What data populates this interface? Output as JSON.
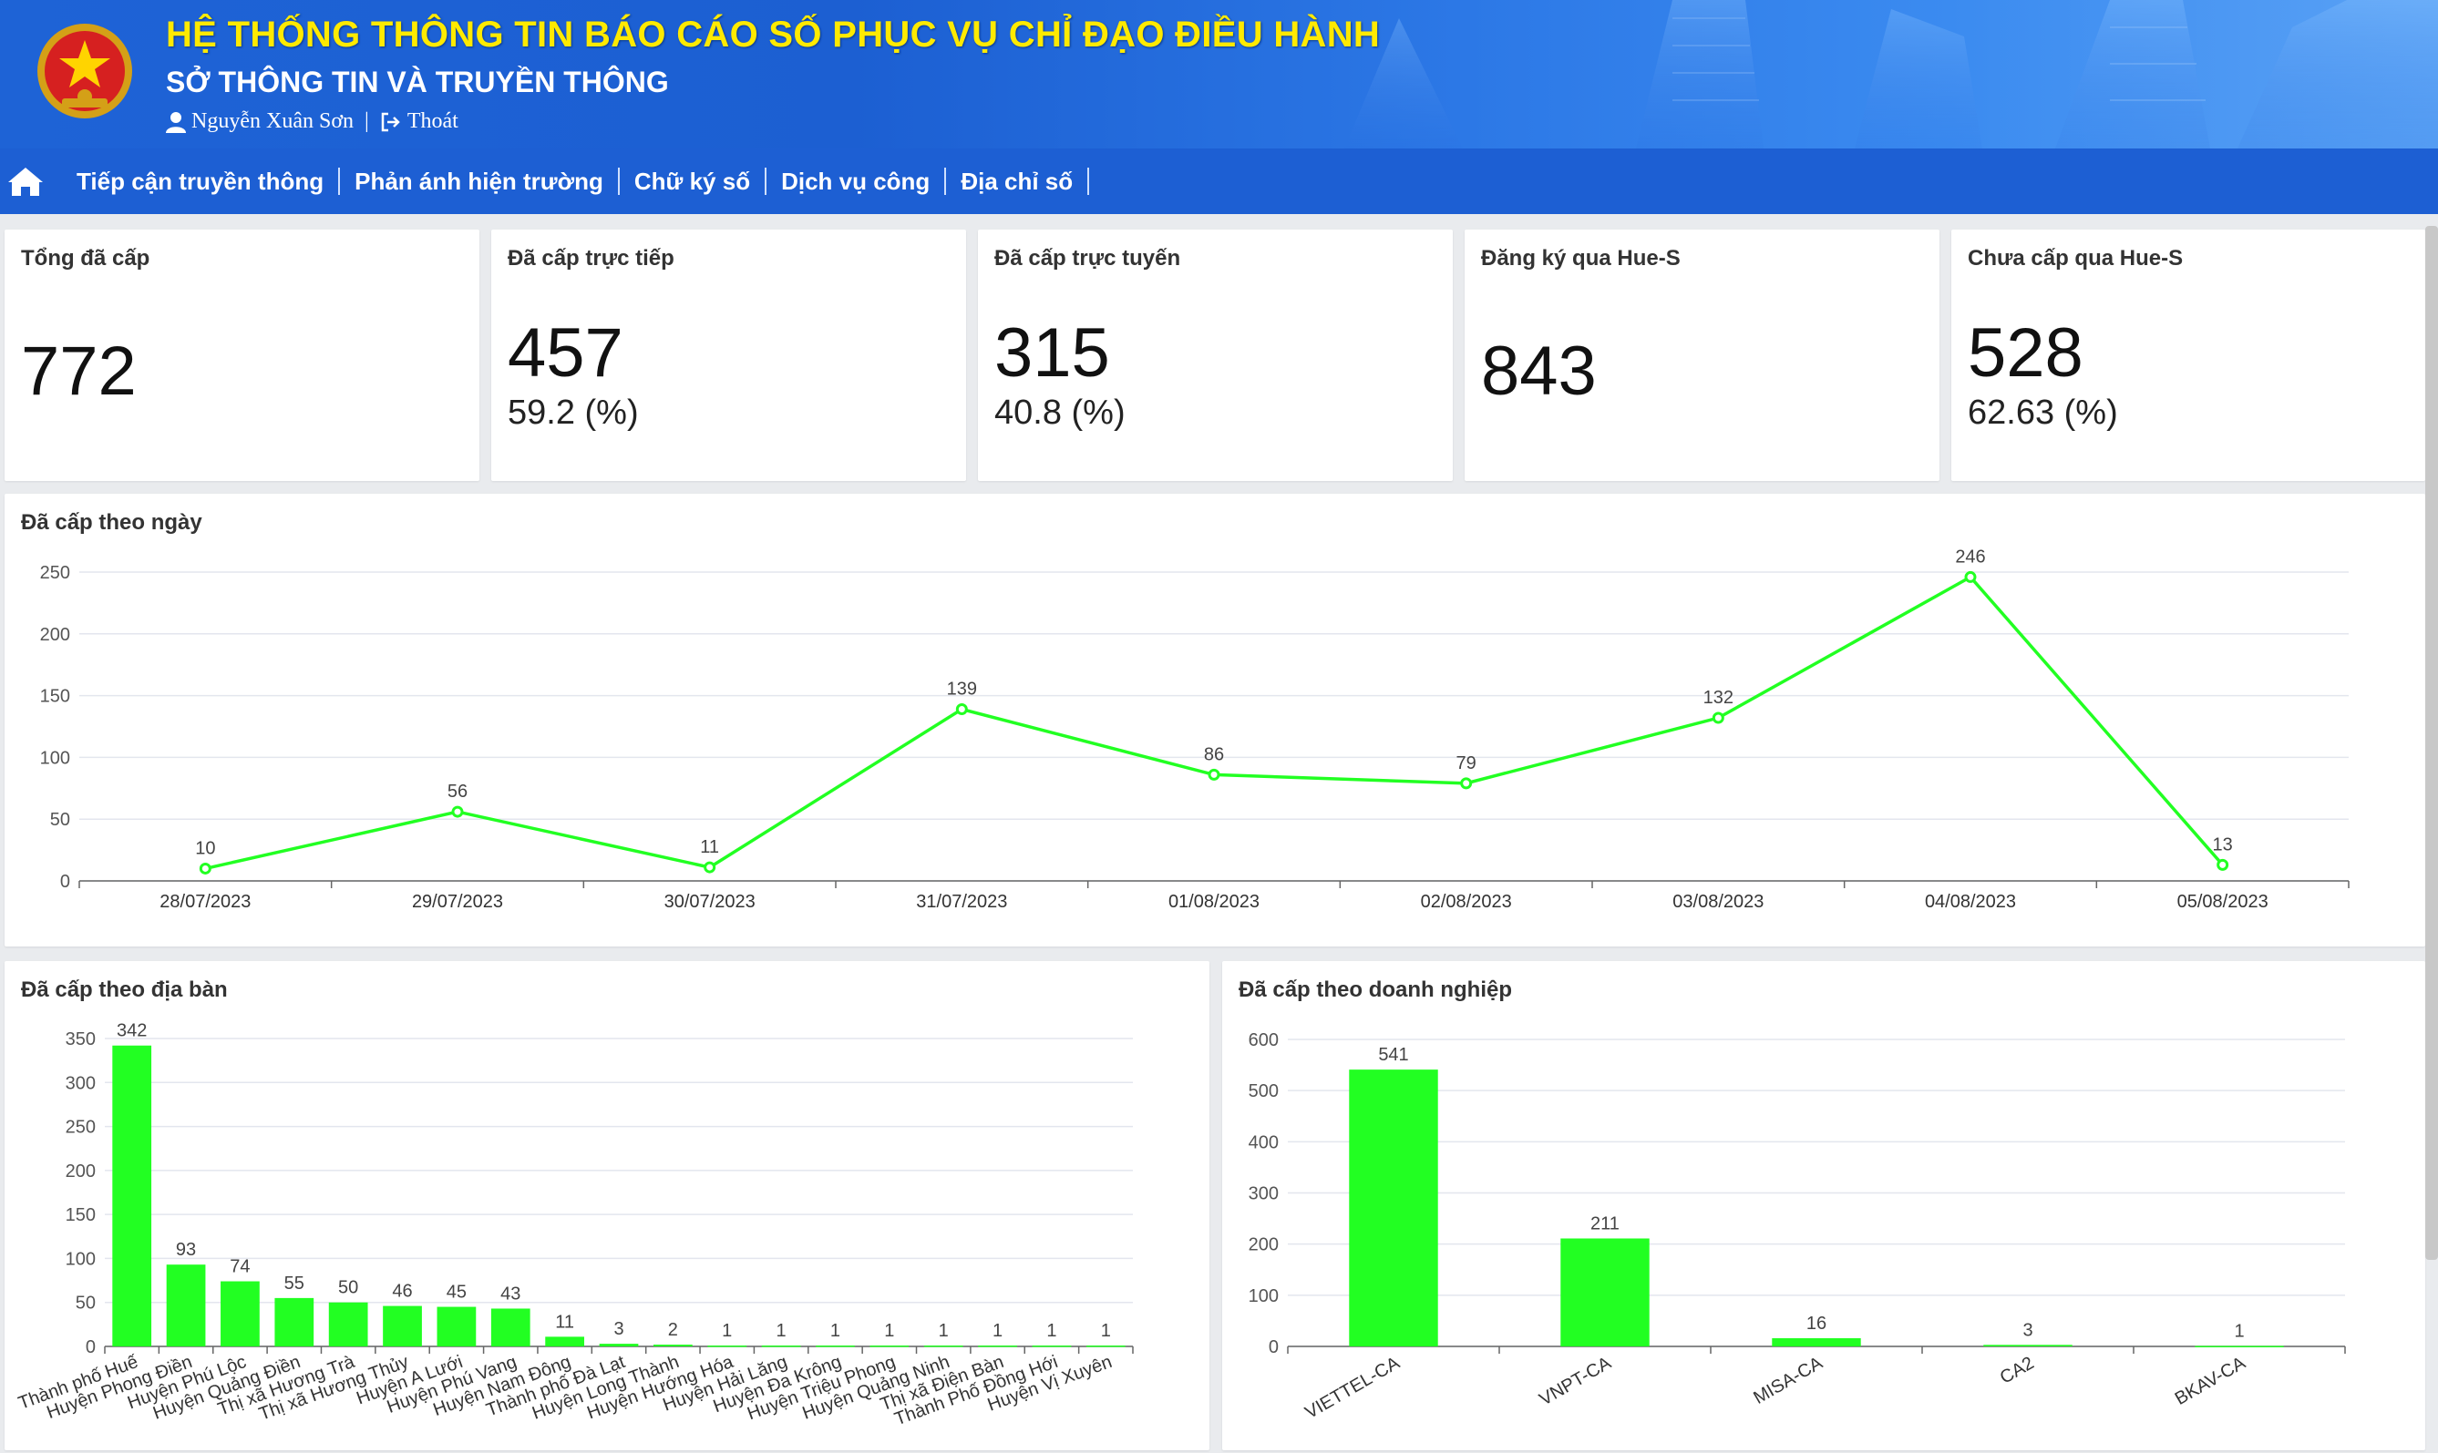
{
  "header": {
    "title": "HỆ THỐNG THÔNG TIN BÁO CÁO SỐ PHỤC VỤ CHỈ ĐẠO ĐIỀU HÀNH",
    "subtitle": "SỞ THÔNG TIN VÀ TRUYỀN THÔNG",
    "user_name": "Nguyễn Xuân Sơn",
    "separator": "|",
    "logout_label": "Thoát",
    "colors": {
      "title": "#ffea00",
      "banner": "#1d5fd3"
    }
  },
  "nav": {
    "items": [
      {
        "label": "Tiếp cận truyền thông"
      },
      {
        "label": "Phản ánh hiện trường"
      },
      {
        "label": "Chữ ký số"
      },
      {
        "label": "Dịch vụ công"
      },
      {
        "label": "Địa chỉ số"
      }
    ],
    "home_icon": "home-icon"
  },
  "stats": [
    {
      "label": "Tổng đã cấp",
      "value": "772",
      "pct": ""
    },
    {
      "label": "Đã cấp trực tiếp",
      "value": "457",
      "pct": "59.2 (%)"
    },
    {
      "label": "Đã cấp trực tuyến",
      "value": "315",
      "pct": "40.8 (%)"
    },
    {
      "label": "Đăng ký qua Hue-S",
      "value": "843",
      "pct": ""
    },
    {
      "label": "Chưa cấp qua Hue-S",
      "value": "528",
      "pct": "62.63 (%)"
    }
  ],
  "chart_colors": {
    "series": "#22ff22",
    "grid": "#e3e6ee",
    "axis": "#666666"
  },
  "chart_data": [
    {
      "id": "by_day",
      "type": "line",
      "title": "Đã cấp theo ngày",
      "categories": [
        "28/07/2023",
        "29/07/2023",
        "30/07/2023",
        "31/07/2023",
        "01/08/2023",
        "02/08/2023",
        "03/08/2023",
        "04/08/2023",
        "05/08/2023"
      ],
      "values": [
        10,
        56,
        11,
        139,
        86,
        79,
        132,
        246,
        13
      ],
      "ylim": [
        0,
        250
      ],
      "yticks": [
        0,
        50,
        100,
        150,
        200,
        250
      ],
      "grid": true,
      "data_labels": true
    },
    {
      "id": "by_area",
      "type": "bar",
      "title": "Đã cấp theo địa bàn",
      "categories": [
        "Thành phố Huế",
        "Huyện Phong Điền",
        "Huyện Phú Lộc",
        "Huyện Quảng Điền",
        "Thị xã Hương Trà",
        "Thị xã Hương Thủy",
        "Huyện A Lưới",
        "Huyện Phú Vang",
        "Huyện Nam Đông",
        "Thành phố Đà Lạt",
        "Huyện Long Thành",
        "Huyện Hướng Hóa",
        "Huyện Hải Lăng",
        "Huyện Đa Krông",
        "Huyện Triệu Phong",
        "Huyện Quảng Ninh",
        "Thị xã Điện Bàn",
        "Thành Phố Đồng Hới",
        "Huyện Vị Xuyên"
      ],
      "values": [
        342,
        93,
        74,
        55,
        50,
        46,
        45,
        43,
        11,
        3,
        2,
        1,
        1,
        1,
        1,
        1,
        1,
        1,
        1
      ],
      "ylim": [
        0,
        350
      ],
      "yticks": [
        0,
        50,
        100,
        150,
        200,
        250,
        300,
        350
      ],
      "grid": true,
      "data_labels": true
    },
    {
      "id": "by_company",
      "type": "bar",
      "title": "Đã cấp theo doanh nghiệp",
      "categories": [
        "VIETTEL-CA",
        "VNPT-CA",
        "MISA-CA",
        "CA2",
        "BKAV-CA"
      ],
      "values": [
        541,
        211,
        16,
        3,
        1
      ],
      "ylim": [
        0,
        600
      ],
      "yticks": [
        0,
        100,
        200,
        300,
        400,
        500,
        600
      ],
      "grid": true,
      "data_labels": true
    }
  ]
}
